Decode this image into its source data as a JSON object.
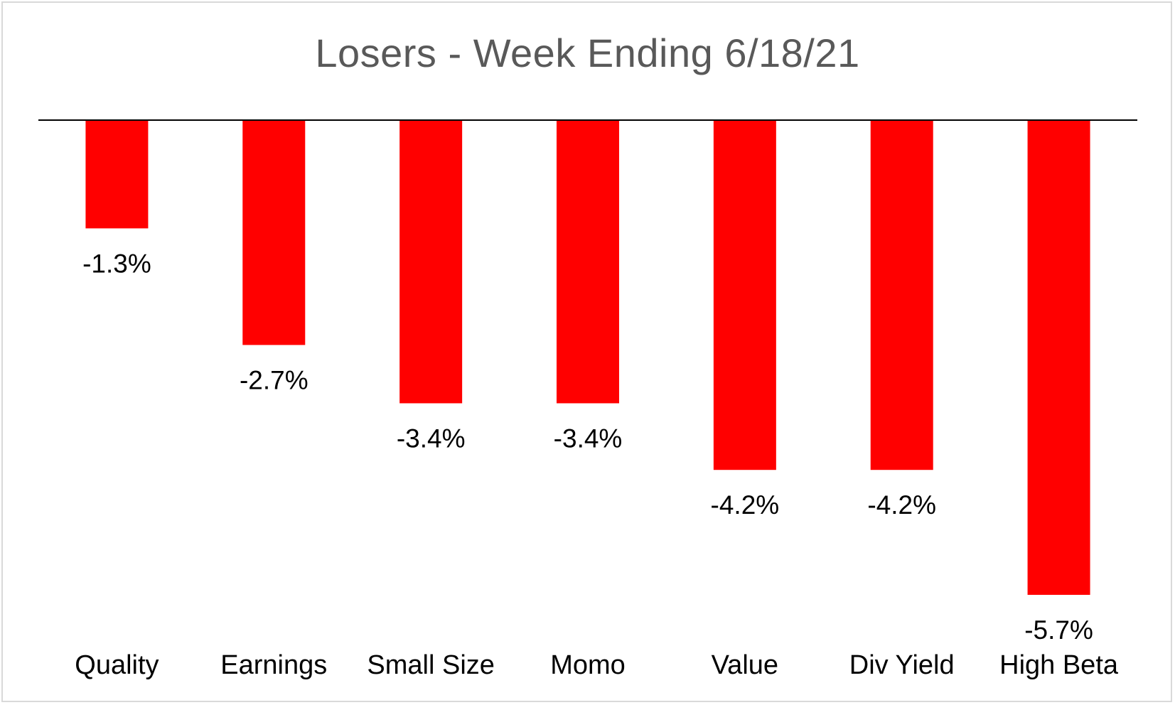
{
  "chart_data": {
    "type": "bar",
    "title": "Losers - Week Ending 6/18/21",
    "categories": [
      "Quality",
      "Earnings",
      "Small Size",
      "Momo",
      "Value",
      "Div Yield",
      "High Beta"
    ],
    "values": [
      -1.3,
      -2.7,
      -3.4,
      -3.4,
      -4.2,
      -4.2,
      -5.7
    ],
    "data_labels": [
      "-1.3%",
      "-2.7%",
      "-3.4%",
      "-3.4%",
      "-4.2%",
      "-4.2%",
      "-5.7%"
    ],
    "unit": "%",
    "ylim": [
      -5.7,
      0
    ],
    "grid": false,
    "legend": "none",
    "bar_color": "#ff0000",
    "xlabel": "",
    "ylabel": ""
  }
}
